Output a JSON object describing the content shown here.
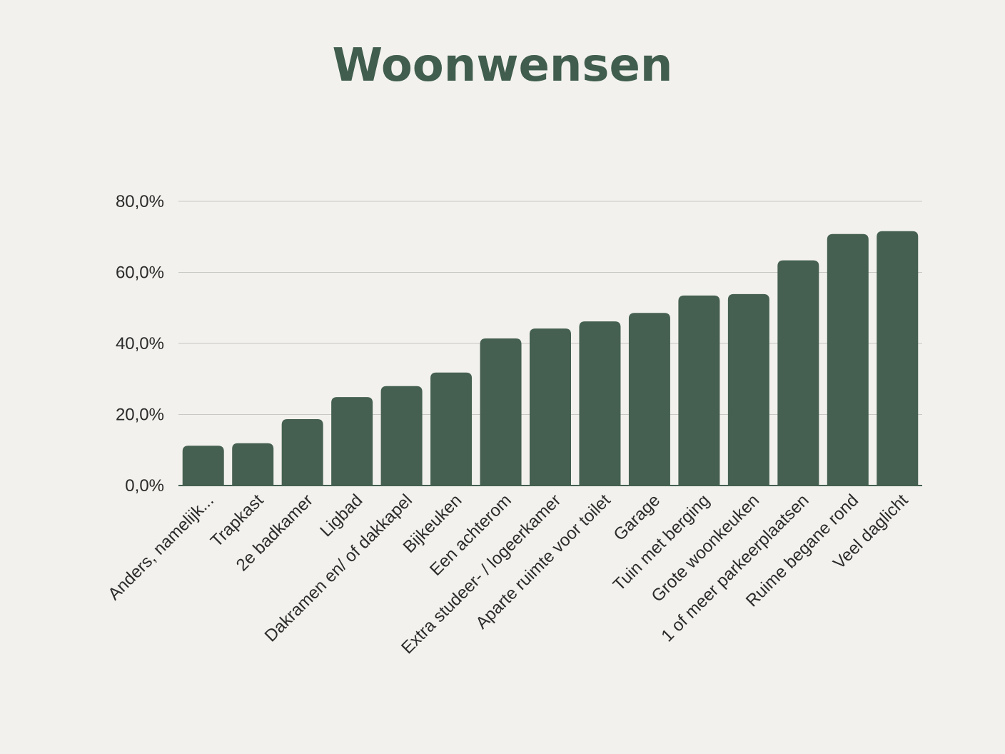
{
  "colors": {
    "background": "#f2f1ed",
    "bar": "#456050",
    "title": "#405d4d",
    "grid": "#c8c8c4",
    "text": "#2b2b2b"
  },
  "chart_data": {
    "type": "bar",
    "title": "Woonwensen",
    "xlabel": "",
    "ylabel": "",
    "categories": [
      "Anders, namelijk...",
      "Trapkast",
      "2e badkamer",
      "Ligbad",
      "Dakramen en/ of dakkapel",
      "Bijkeuken",
      "Een achterom",
      "Extra studeer- / logeerkamer",
      "Aparte ruimte voor toilet",
      "Garage",
      "Tuin met berging",
      "Grote woonkeuken",
      "1 of meer parkeerplaatsen",
      "Ruime begane rond",
      "Veel daglicht"
    ],
    "values": [
      11.2,
      11.9,
      18.7,
      24.9,
      28.0,
      31.8,
      41.4,
      44.2,
      46.2,
      48.6,
      53.5,
      53.9,
      63.4,
      70.8,
      71.6
    ],
    "ylim": [
      0,
      80
    ],
    "yticks": [
      "0,0%",
      "20,0%",
      "40,0%",
      "60,0%",
      "80,0%"
    ],
    "grid": true,
    "legend": "none"
  }
}
